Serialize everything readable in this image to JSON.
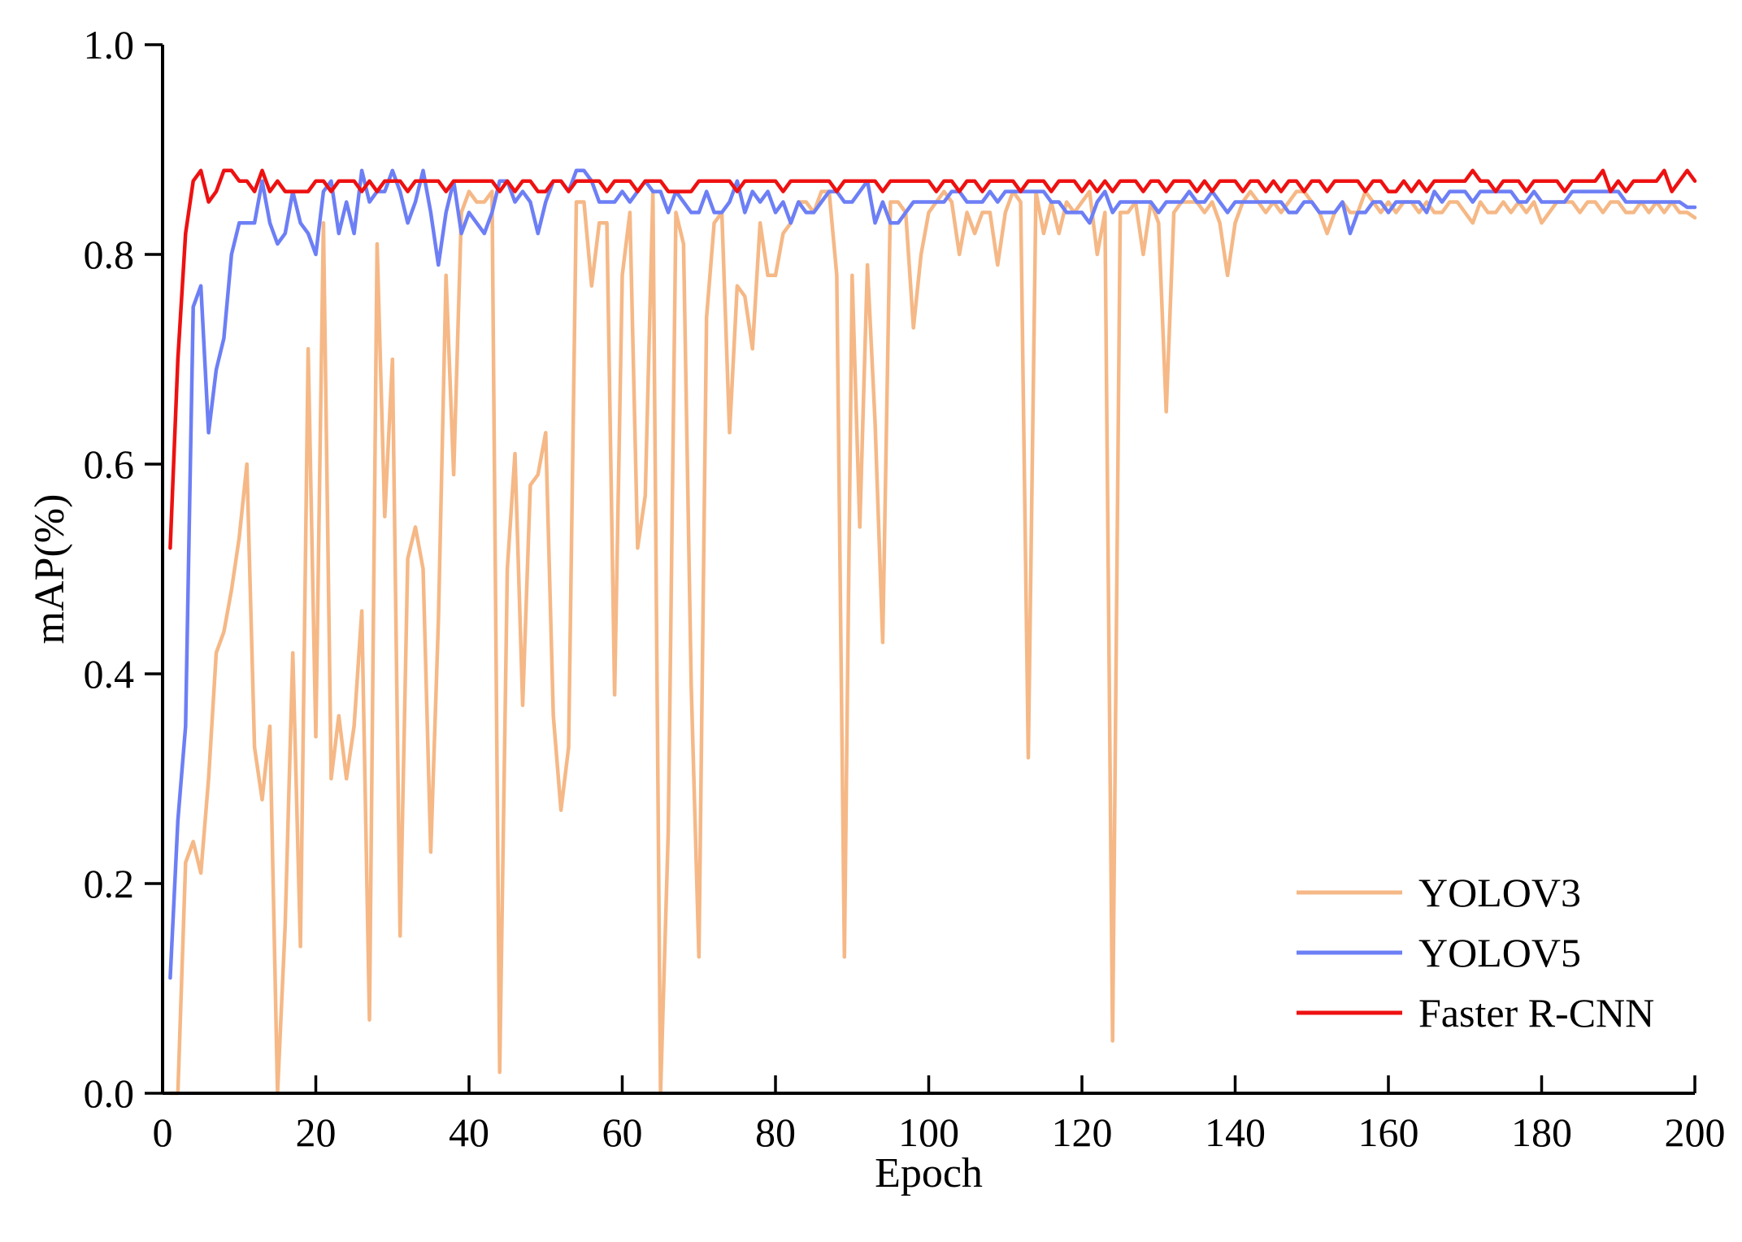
{
  "chart_data": {
    "type": "line",
    "title": "",
    "xlabel": "Epoch",
    "ylabel": "mAP(%)",
    "xlim": [
      0,
      200
    ],
    "ylim": [
      0.0,
      1.0
    ],
    "xticks": [
      0,
      20,
      40,
      60,
      80,
      100,
      120,
      140,
      160,
      180,
      200
    ],
    "xtick_labels": [
      "0",
      "20",
      "40",
      "60",
      "80",
      "100",
      "120",
      "140",
      "160",
      "180",
      "200"
    ],
    "yticks": [
      0.0,
      0.2,
      0.4,
      0.6,
      0.8,
      1.0
    ],
    "ytick_labels": [
      "0.0",
      "0.2",
      "0.4",
      "0.6",
      "0.8",
      "1.0"
    ],
    "grid": false,
    "legend_position": "bottom-right",
    "series": [
      {
        "name": "YOLOV3",
        "color": "#f5b886",
        "x": [
          1,
          2,
          3,
          4,
          5,
          6,
          7,
          8,
          9,
          10,
          11,
          12,
          13,
          14,
          15,
          16,
          17,
          18,
          19,
          20,
          21,
          22,
          23,
          24,
          25,
          26,
          27,
          28,
          29,
          30,
          31,
          32,
          33,
          34,
          35,
          36,
          37,
          38,
          39,
          40,
          41,
          42,
          43,
          44,
          45,
          46,
          47,
          48,
          49,
          50,
          51,
          52,
          53,
          54,
          55,
          56,
          57,
          58,
          59,
          60,
          61,
          62,
          63,
          64,
          65,
          66,
          67,
          68,
          69,
          70,
          71,
          72,
          73,
          74,
          75,
          76,
          77,
          78,
          79,
          80,
          81,
          82,
          83,
          84,
          85,
          86,
          87,
          88,
          89,
          90,
          91,
          92,
          93,
          94,
          95,
          96,
          97,
          98,
          99,
          100,
          101,
          102,
          103,
          104,
          105,
          106,
          107,
          108,
          109,
          110,
          111,
          112,
          113,
          114,
          115,
          116,
          117,
          118,
          119,
          120,
          121,
          122,
          123,
          124,
          125,
          126,
          127,
          128,
          129,
          130,
          131,
          132,
          133,
          134,
          135,
          136,
          137,
          138,
          139,
          140,
          141,
          142,
          143,
          144,
          145,
          146,
          147,
          148,
          149,
          150,
          151,
          152,
          153,
          154,
          155,
          156,
          157,
          158,
          159,
          160,
          161,
          162,
          163,
          164,
          165,
          166,
          167,
          168,
          169,
          170,
          171,
          172,
          173,
          174,
          175,
          176,
          177,
          178,
          179,
          180,
          181,
          182,
          183,
          184,
          185,
          186,
          187,
          188,
          189,
          190,
          191,
          192,
          193,
          194,
          195,
          196,
          197,
          198,
          199,
          200
        ],
        "values": [
          0.0,
          0.0,
          0.22,
          0.24,
          0.21,
          0.3,
          0.42,
          0.44,
          0.48,
          0.53,
          0.6,
          0.33,
          0.28,
          0.35,
          0.0,
          0.16,
          0.42,
          0.14,
          0.71,
          0.34,
          0.83,
          0.3,
          0.36,
          0.3,
          0.35,
          0.46,
          0.07,
          0.81,
          0.55,
          0.7,
          0.15,
          0.51,
          0.54,
          0.5,
          0.23,
          0.45,
          0.78,
          0.59,
          0.84,
          0.86,
          0.85,
          0.85,
          0.86,
          0.02,
          0.5,
          0.61,
          0.37,
          0.58,
          0.59,
          0.63,
          0.36,
          0.27,
          0.33,
          0.85,
          0.85,
          0.77,
          0.83,
          0.83,
          0.38,
          0.78,
          0.84,
          0.52,
          0.57,
          0.86,
          0.0,
          0.25,
          0.84,
          0.81,
          0.39,
          0.13,
          0.74,
          0.83,
          0.84,
          0.63,
          0.77,
          0.76,
          0.71,
          0.83,
          0.78,
          0.78,
          0.82,
          0.83,
          0.85,
          0.85,
          0.84,
          0.86,
          0.86,
          0.78,
          0.13,
          0.78,
          0.54,
          0.79,
          0.64,
          0.43,
          0.85,
          0.85,
          0.84,
          0.73,
          0.8,
          0.84,
          0.85,
          0.86,
          0.85,
          0.8,
          0.84,
          0.82,
          0.84,
          0.84,
          0.79,
          0.84,
          0.86,
          0.85,
          0.32,
          0.86,
          0.82,
          0.85,
          0.82,
          0.85,
          0.84,
          0.85,
          0.86,
          0.8,
          0.84,
          0.05,
          0.84,
          0.84,
          0.85,
          0.8,
          0.85,
          0.83,
          0.65,
          0.84,
          0.85,
          0.85,
          0.85,
          0.84,
          0.85,
          0.83,
          0.78,
          0.83,
          0.85,
          0.86,
          0.85,
          0.84,
          0.85,
          0.84,
          0.85,
          0.86,
          0.86,
          0.85,
          0.84,
          0.82,
          0.84,
          0.85,
          0.84,
          0.84,
          0.86,
          0.85,
          0.84,
          0.85,
          0.84,
          0.85,
          0.85,
          0.84,
          0.85,
          0.84,
          0.84,
          0.85,
          0.85,
          0.84,
          0.83,
          0.85,
          0.84,
          0.84,
          0.85,
          0.84,
          0.85,
          0.84,
          0.85,
          0.83,
          0.84,
          0.85,
          0.85,
          0.85,
          0.84,
          0.85,
          0.85,
          0.84,
          0.85,
          0.85,
          0.84,
          0.84,
          0.85,
          0.84,
          0.85,
          0.84,
          0.85,
          0.84,
          0.84,
          0.835
        ]
      },
      {
        "name": "YOLOV5",
        "color": "#6d7ff5",
        "x": [
          1,
          2,
          3,
          4,
          5,
          6,
          7,
          8,
          9,
          10,
          11,
          12,
          13,
          14,
          15,
          16,
          17,
          18,
          19,
          20,
          21,
          22,
          23,
          24,
          25,
          26,
          27,
          28,
          29,
          30,
          31,
          32,
          33,
          34,
          35,
          36,
          37,
          38,
          39,
          40,
          41,
          42,
          43,
          44,
          45,
          46,
          47,
          48,
          49,
          50,
          51,
          52,
          53,
          54,
          55,
          56,
          57,
          58,
          59,
          60,
          61,
          62,
          63,
          64,
          65,
          66,
          67,
          68,
          69,
          70,
          71,
          72,
          73,
          74,
          75,
          76,
          77,
          78,
          79,
          80,
          81,
          82,
          83,
          84,
          85,
          86,
          87,
          88,
          89,
          90,
          91,
          92,
          93,
          94,
          95,
          96,
          97,
          98,
          99,
          100,
          101,
          102,
          103,
          104,
          105,
          106,
          107,
          108,
          109,
          110,
          111,
          112,
          113,
          114,
          115,
          116,
          117,
          118,
          119,
          120,
          121,
          122,
          123,
          124,
          125,
          126,
          127,
          128,
          129,
          130,
          131,
          132,
          133,
          134,
          135,
          136,
          137,
          138,
          139,
          140,
          141,
          142,
          143,
          144,
          145,
          146,
          147,
          148,
          149,
          150,
          151,
          152,
          153,
          154,
          155,
          156,
          157,
          158,
          159,
          160,
          161,
          162,
          163,
          164,
          165,
          166,
          167,
          168,
          169,
          170,
          171,
          172,
          173,
          174,
          175,
          176,
          177,
          178,
          179,
          180,
          181,
          182,
          183,
          184,
          185,
          186,
          187,
          188,
          189,
          190,
          191,
          192,
          193,
          194,
          195,
          196,
          197,
          198,
          199,
          200
        ],
        "values": [
          0.11,
          0.26,
          0.35,
          0.75,
          0.77,
          0.63,
          0.69,
          0.72,
          0.8,
          0.83,
          0.83,
          0.83,
          0.87,
          0.83,
          0.81,
          0.82,
          0.86,
          0.83,
          0.82,
          0.8,
          0.86,
          0.87,
          0.82,
          0.85,
          0.82,
          0.88,
          0.85,
          0.86,
          0.86,
          0.88,
          0.86,
          0.83,
          0.85,
          0.88,
          0.84,
          0.79,
          0.84,
          0.87,
          0.82,
          0.84,
          0.83,
          0.82,
          0.84,
          0.87,
          0.87,
          0.85,
          0.86,
          0.85,
          0.82,
          0.85,
          0.87,
          0.87,
          0.86,
          0.88,
          0.88,
          0.87,
          0.85,
          0.85,
          0.85,
          0.86,
          0.85,
          0.86,
          0.87,
          0.86,
          0.86,
          0.84,
          0.86,
          0.85,
          0.84,
          0.84,
          0.86,
          0.84,
          0.84,
          0.85,
          0.87,
          0.84,
          0.86,
          0.85,
          0.86,
          0.84,
          0.85,
          0.83,
          0.85,
          0.84,
          0.84,
          0.85,
          0.86,
          0.86,
          0.85,
          0.85,
          0.86,
          0.87,
          0.83,
          0.85,
          0.83,
          0.83,
          0.84,
          0.85,
          0.85,
          0.85,
          0.85,
          0.85,
          0.86,
          0.86,
          0.85,
          0.85,
          0.85,
          0.86,
          0.85,
          0.86,
          0.86,
          0.86,
          0.86,
          0.86,
          0.86,
          0.85,
          0.85,
          0.84,
          0.84,
          0.84,
          0.83,
          0.85,
          0.86,
          0.84,
          0.85,
          0.85,
          0.85,
          0.85,
          0.85,
          0.84,
          0.85,
          0.85,
          0.85,
          0.86,
          0.85,
          0.85,
          0.86,
          0.85,
          0.84,
          0.85,
          0.85,
          0.85,
          0.85,
          0.85,
          0.85,
          0.85,
          0.84,
          0.84,
          0.85,
          0.85,
          0.84,
          0.84,
          0.84,
          0.85,
          0.82,
          0.84,
          0.84,
          0.85,
          0.85,
          0.84,
          0.85,
          0.85,
          0.85,
          0.85,
          0.84,
          0.86,
          0.85,
          0.86,
          0.86,
          0.86,
          0.85,
          0.86,
          0.86,
          0.86,
          0.86,
          0.86,
          0.85,
          0.85,
          0.86,
          0.85,
          0.85,
          0.85,
          0.85,
          0.86,
          0.86,
          0.86,
          0.86,
          0.86,
          0.86,
          0.86,
          0.85,
          0.85,
          0.85,
          0.85,
          0.85,
          0.85,
          0.85,
          0.85,
          0.845,
          0.845
        ]
      },
      {
        "name": "Faster R-CNN",
        "color": "#ee1111",
        "x": [
          1,
          2,
          3,
          4,
          5,
          6,
          7,
          8,
          9,
          10,
          11,
          12,
          13,
          14,
          15,
          16,
          17,
          18,
          19,
          20,
          21,
          22,
          23,
          24,
          25,
          26,
          27,
          28,
          29,
          30,
          31,
          32,
          33,
          34,
          35,
          36,
          37,
          38,
          39,
          40,
          41,
          42,
          43,
          44,
          45,
          46,
          47,
          48,
          49,
          50,
          51,
          52,
          53,
          54,
          55,
          56,
          57,
          58,
          59,
          60,
          61,
          62,
          63,
          64,
          65,
          66,
          67,
          68,
          69,
          70,
          71,
          72,
          73,
          74,
          75,
          76,
          77,
          78,
          79,
          80,
          81,
          82,
          83,
          84,
          85,
          86,
          87,
          88,
          89,
          90,
          91,
          92,
          93,
          94,
          95,
          96,
          97,
          98,
          99,
          100,
          101,
          102,
          103,
          104,
          105,
          106,
          107,
          108,
          109,
          110,
          111,
          112,
          113,
          114,
          115,
          116,
          117,
          118,
          119,
          120,
          121,
          122,
          123,
          124,
          125,
          126,
          127,
          128,
          129,
          130,
          131,
          132,
          133,
          134,
          135,
          136,
          137,
          138,
          139,
          140,
          141,
          142,
          143,
          144,
          145,
          146,
          147,
          148,
          149,
          150,
          151,
          152,
          153,
          154,
          155,
          156,
          157,
          158,
          159,
          160,
          161,
          162,
          163,
          164,
          165,
          166,
          167,
          168,
          169,
          170,
          171,
          172,
          173,
          174,
          175,
          176,
          177,
          178,
          179,
          180,
          181,
          182,
          183,
          184,
          185,
          186,
          187,
          188,
          189,
          190,
          191,
          192,
          193,
          194,
          195,
          196,
          197,
          198,
          199,
          200
        ],
        "values": [
          0.52,
          0.7,
          0.82,
          0.87,
          0.88,
          0.85,
          0.86,
          0.88,
          0.88,
          0.87,
          0.87,
          0.86,
          0.88,
          0.86,
          0.87,
          0.86,
          0.86,
          0.86,
          0.86,
          0.87,
          0.87,
          0.86,
          0.87,
          0.87,
          0.87,
          0.86,
          0.87,
          0.86,
          0.87,
          0.87,
          0.87,
          0.86,
          0.87,
          0.87,
          0.87,
          0.87,
          0.86,
          0.87,
          0.87,
          0.87,
          0.87,
          0.87,
          0.87,
          0.86,
          0.87,
          0.86,
          0.87,
          0.87,
          0.86,
          0.86,
          0.87,
          0.87,
          0.86,
          0.87,
          0.87,
          0.87,
          0.87,
          0.86,
          0.87,
          0.87,
          0.87,
          0.86,
          0.87,
          0.87,
          0.87,
          0.86,
          0.86,
          0.86,
          0.86,
          0.87,
          0.87,
          0.87,
          0.87,
          0.87,
          0.86,
          0.87,
          0.87,
          0.87,
          0.87,
          0.87,
          0.86,
          0.87,
          0.87,
          0.87,
          0.87,
          0.87,
          0.87,
          0.86,
          0.87,
          0.87,
          0.87,
          0.87,
          0.87,
          0.86,
          0.87,
          0.87,
          0.87,
          0.87,
          0.87,
          0.87,
          0.86,
          0.87,
          0.87,
          0.86,
          0.87,
          0.87,
          0.86,
          0.87,
          0.87,
          0.87,
          0.87,
          0.86,
          0.87,
          0.87,
          0.87,
          0.86,
          0.87,
          0.87,
          0.87,
          0.86,
          0.87,
          0.86,
          0.87,
          0.86,
          0.87,
          0.87,
          0.87,
          0.86,
          0.87,
          0.87,
          0.86,
          0.87,
          0.87,
          0.87,
          0.86,
          0.87,
          0.86,
          0.87,
          0.87,
          0.87,
          0.86,
          0.87,
          0.87,
          0.86,
          0.87,
          0.86,
          0.87,
          0.87,
          0.86,
          0.87,
          0.87,
          0.86,
          0.87,
          0.87,
          0.87,
          0.87,
          0.86,
          0.87,
          0.87,
          0.86,
          0.86,
          0.87,
          0.86,
          0.87,
          0.86,
          0.87,
          0.87,
          0.87,
          0.87,
          0.87,
          0.88,
          0.87,
          0.87,
          0.86,
          0.87,
          0.87,
          0.87,
          0.86,
          0.87,
          0.87,
          0.87,
          0.87,
          0.86,
          0.87,
          0.87,
          0.87,
          0.87,
          0.88,
          0.86,
          0.87,
          0.86,
          0.87,
          0.87,
          0.87,
          0.87,
          0.88,
          0.86,
          0.87,
          0.88,
          0.87
        ]
      }
    ]
  }
}
